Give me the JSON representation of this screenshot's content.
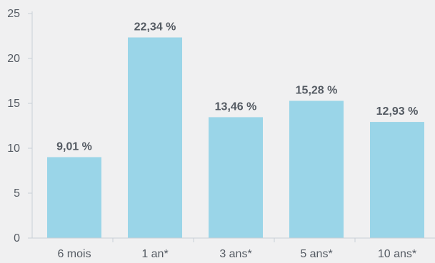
{
  "chart_data": {
    "type": "bar",
    "categories": [
      "6 mois",
      "1 an*",
      "3 ans*",
      "5 ans*",
      "10 ans*"
    ],
    "values": [
      9.01,
      22.34,
      13.46,
      15.28,
      12.93
    ],
    "data_labels": [
      "9,01 %",
      "22,34 %",
      "13,46 %",
      "15,28 %",
      "12,93 %"
    ],
    "y_ticks": [
      "0",
      "5",
      "10",
      "15",
      "20",
      "25"
    ],
    "y_tick_values": [
      0,
      5,
      10,
      15,
      20,
      25
    ],
    "ylim": [
      0,
      25
    ],
    "title": "",
    "xlabel": "",
    "ylabel": "",
    "grid": false,
    "legend": "none",
    "colors": {
      "bar": "#9ad5e8",
      "axis": "#c9d0d6",
      "text": "#555b63",
      "background": "#f0f0f1"
    }
  }
}
